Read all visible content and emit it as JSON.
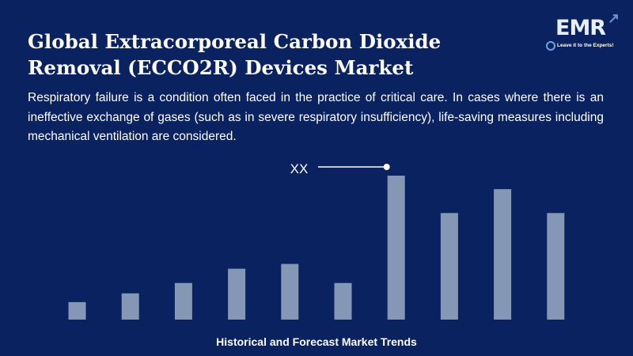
{
  "header": {
    "title": "Global Extracorporeal Carbon Dioxide Removal (ECCO2R) Devices Market",
    "description": "Respiratory failure is a condition often faced in the practice of critical care. In cases where there is an ineffective exchange of gases (such as in severe respiratory insufficiency), life-saving measures including mechanical ventilation are considered."
  },
  "logo": {
    "text": "EMR",
    "tagline": "Leave it to the Experts!"
  },
  "colors": {
    "background": "#0b2260",
    "bar": "#8497b4"
  },
  "chart_data": {
    "type": "bar",
    "title": "",
    "xlabel": "Historical and Forecast Market Trends",
    "ylabel": "",
    "categories": [
      "",
      "",
      "",
      "",
      "",
      "",
      "",
      "",
      "",
      ""
    ],
    "values": [
      22,
      33,
      46,
      64,
      70,
      46,
      181,
      134,
      164,
      134
    ],
    "ylim": [
      0,
      181
    ],
    "grid": false,
    "annotation": {
      "label": "XX",
      "bar_index": 6
    }
  }
}
